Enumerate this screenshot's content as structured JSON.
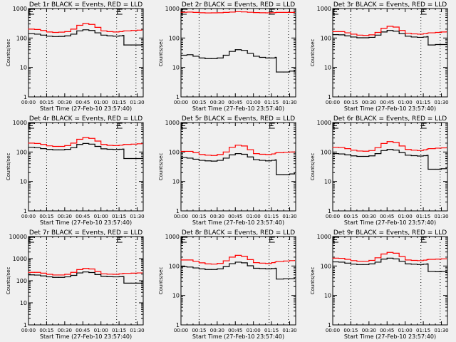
{
  "figure": {
    "background": "#f0f0f0",
    "series_colors": {
      "events": "#000000",
      "lld": "#ff0000"
    },
    "xlabel": "Start Time (27-Feb-10 23:57:40)",
    "ylabel": "Counts/sec",
    "x_tick_labels": [
      "00:00",
      "00:15",
      "00:30",
      "00:45",
      "01:00",
      "01:15",
      "01:30"
    ],
    "x_tick_minutes": [
      0,
      15,
      30,
      45,
      60,
      75,
      90
    ],
    "x_range_minutes": [
      0,
      95
    ],
    "dotted_markers_minutes": [
      15,
      73,
      89
    ],
    "marker_labels": [
      "E",
      "E"
    ],
    "marker_label_minutes": [
      0,
      73
    ]
  },
  "chart_data": [
    {
      "type": "line",
      "title": "Det 1r BLACK = Events, RED = LLD",
      "xlabel": "Start Time (27-Feb-10 23:57:40)",
      "ylabel": "Counts/sec",
      "yscale": "log",
      "ylim": [
        1,
        1000
      ],
      "y_tick_labels": [
        "1",
        "10",
        "100",
        "1000"
      ],
      "x": [
        0,
        5,
        10,
        15,
        20,
        25,
        30,
        35,
        40,
        45,
        50,
        55,
        60,
        65,
        70,
        75,
        78,
        79,
        85,
        90,
        94
      ],
      "series": [
        {
          "name": "Events",
          "values": [
            140,
            135,
            125,
            115,
            112,
            113,
            118,
            135,
            175,
            190,
            180,
            150,
            125,
            118,
            115,
            118,
            122,
            58,
            58,
            58,
            58
          ]
        },
        {
          "name": "LLD",
          "values": [
            200,
            195,
            180,
            160,
            155,
            158,
            165,
            200,
            270,
            310,
            290,
            230,
            175,
            165,
            160,
            165,
            170,
            175,
            180,
            185,
            190
          ]
        }
      ]
    },
    {
      "type": "line",
      "title": "Det 2r BLACK = Events, RED = LLD",
      "xlabel": "Start Time (27-Feb-10 23:57:40)",
      "ylabel": "Counts/sec",
      "yscale": "log",
      "ylim": [
        1,
        1000
      ],
      "y_tick_labels": [
        "1",
        "10",
        "100",
        "1000"
      ],
      "x": [
        0,
        5,
        10,
        15,
        20,
        25,
        30,
        35,
        40,
        45,
        50,
        55,
        60,
        65,
        70,
        75,
        78,
        79,
        85,
        90,
        94
      ],
      "series": [
        {
          "name": "Events",
          "values": [
            26,
            27,
            24,
            21,
            20,
            20,
            21,
            26,
            35,
            40,
            38,
            30,
            24,
            22,
            21,
            21,
            22,
            7,
            7,
            7.5,
            8
          ]
        },
        {
          "name": "LLD",
          "values": [
            750,
            760,
            740,
            720,
            710,
            715,
            720,
            740,
            760,
            780,
            770,
            750,
            730,
            720,
            715,
            720,
            730,
            740,
            740,
            740,
            750
          ]
        }
      ]
    },
    {
      "type": "line",
      "title": "Det 3r BLACK = Events, RED = LLD",
      "xlabel": "Start Time (27-Feb-10 23:57:40)",
      "ylabel": "Counts/sec",
      "yscale": "log",
      "ylim": [
        1,
        1000
      ],
      "y_tick_labels": [
        "1",
        "10",
        "100",
        "1000"
      ],
      "x": [
        0,
        5,
        10,
        15,
        20,
        25,
        30,
        35,
        40,
        45,
        50,
        55,
        60,
        65,
        70,
        75,
        78,
        79,
        85,
        90,
        94
      ],
      "series": [
        {
          "name": "Events",
          "values": [
            130,
            128,
            118,
            108,
            102,
            102,
            105,
            125,
            160,
            180,
            170,
            140,
            115,
            108,
            105,
            108,
            112,
            58,
            60,
            60,
            62
          ]
        },
        {
          "name": "LLD",
          "values": [
            165,
            165,
            150,
            135,
            125,
            122,
            128,
            155,
            215,
            250,
            235,
            180,
            145,
            138,
            135,
            140,
            145,
            150,
            155,
            160,
            165
          ]
        }
      ]
    },
    {
      "type": "line",
      "title": "Det 4r BLACK = Events, RED = LLD",
      "xlabel": "Start Time (27-Feb-10 23:57:40)",
      "ylabel": "Counts/sec",
      "yscale": "log",
      "ylim": [
        1,
        1000
      ],
      "y_tick_labels": [
        "1",
        "10",
        "100",
        "1000"
      ],
      "x": [
        0,
        5,
        10,
        15,
        20,
        25,
        30,
        35,
        40,
        45,
        50,
        55,
        60,
        65,
        70,
        75,
        78,
        79,
        85,
        90,
        94
      ],
      "series": [
        {
          "name": "Events",
          "values": [
            145,
            140,
            130,
            122,
            118,
            118,
            123,
            140,
            180,
            195,
            185,
            155,
            128,
            124,
            122,
            124,
            126,
            60,
            60,
            60,
            62
          ]
        },
        {
          "name": "LLD",
          "values": [
            200,
            195,
            180,
            162,
            155,
            155,
            165,
            200,
            270,
            310,
            290,
            235,
            180,
            168,
            165,
            170,
            175,
            180,
            185,
            190,
            195
          ]
        }
      ]
    },
    {
      "type": "line",
      "title": "Det 5r BLACK = Events, RED = LLD",
      "xlabel": "Start Time (27-Feb-10 23:57:40)",
      "ylabel": "Counts/sec",
      "yscale": "log",
      "ylim": [
        1,
        1000
      ],
      "y_tick_labels": [
        "1",
        "10",
        "100",
        "1000"
      ],
      "x": [
        0,
        5,
        10,
        15,
        20,
        25,
        30,
        35,
        40,
        45,
        50,
        55,
        60,
        65,
        70,
        75,
        78,
        79,
        85,
        90,
        94
      ],
      "series": [
        {
          "name": "Events",
          "values": [
            65,
            62,
            57,
            52,
            50,
            49,
            52,
            62,
            80,
            88,
            84,
            68,
            55,
            52,
            50,
            52,
            54,
            17,
            17,
            18,
            19
          ]
        },
        {
          "name": "LLD",
          "values": [
            105,
            105,
            95,
            82,
            78,
            76,
            82,
            100,
            145,
            170,
            160,
            120,
            88,
            84,
            82,
            86,
            92,
            95,
            98,
            100,
            102
          ]
        }
      ]
    },
    {
      "type": "line",
      "title": "Det 6r BLACK = Events, RED = LLD",
      "xlabel": "Start Time (27-Feb-10 23:57:40)",
      "ylabel": "Counts/sec",
      "yscale": "log",
      "ylim": [
        1,
        1000
      ],
      "y_tick_labels": [
        "1",
        "10",
        "100",
        "1000"
      ],
      "x": [
        0,
        5,
        10,
        15,
        20,
        25,
        30,
        35,
        40,
        45,
        50,
        55,
        60,
        65,
        70,
        75,
        78,
        79,
        85,
        90,
        94
      ],
      "series": [
        {
          "name": "Events",
          "values": [
            88,
            86,
            80,
            74,
            71,
            71,
            74,
            88,
            112,
            122,
            116,
            95,
            78,
            75,
            73,
            75,
            77,
            26,
            26,
            27,
            28
          ]
        },
        {
          "name": "LLD",
          "values": [
            145,
            142,
            130,
            115,
            108,
            106,
            112,
            140,
            195,
            225,
            210,
            160,
            122,
            115,
            112,
            118,
            125,
            130,
            135,
            138,
            142
          ]
        }
      ]
    },
    {
      "type": "line",
      "title": "Det 7r BLACK = Events, RED = LLD",
      "xlabel": "Start Time (27-Feb-10 23:57:40)",
      "ylabel": "Counts/sec",
      "yscale": "log",
      "ylim": [
        1,
        10000
      ],
      "y_tick_labels": [
        "1",
        "10",
        "100",
        "1000",
        "10000"
      ],
      "x": [
        0,
        5,
        10,
        15,
        20,
        25,
        30,
        35,
        40,
        45,
        50,
        55,
        60,
        65,
        70,
        75,
        78,
        79,
        85,
        90,
        94
      ],
      "series": [
        {
          "name": "Events",
          "values": [
            185,
            180,
            165,
            150,
            142,
            142,
            150,
            175,
            225,
            250,
            235,
            190,
            158,
            152,
            150,
            152,
            155,
            78,
            78,
            78,
            80
          ]
        },
        {
          "name": "LLD",
          "values": [
            240,
            240,
            220,
            195,
            182,
            182,
            195,
            240,
            320,
            360,
            340,
            260,
            205,
            198,
            195,
            205,
            212,
            215,
            220,
            225,
            228
          ]
        }
      ]
    },
    {
      "type": "line",
      "title": "Det 8r BLACK = Events, RED = LLD",
      "xlabel": "Start Time (27-Feb-10 23:57:40)",
      "ylabel": "Counts/sec",
      "yscale": "log",
      "ylim": [
        1,
        1000
      ],
      "y_tick_labels": [
        "1",
        "10",
        "100",
        "1000"
      ],
      "x": [
        0,
        5,
        10,
        15,
        20,
        25,
        30,
        35,
        40,
        45,
        50,
        55,
        60,
        65,
        70,
        75,
        78,
        79,
        85,
        90,
        94
      ],
      "series": [
        {
          "name": "Events",
          "values": [
            95,
            92,
            86,
            80,
            76,
            76,
            80,
            95,
            120,
            135,
            128,
            102,
            84,
            82,
            80,
            82,
            84,
            36,
            37,
            37,
            38
          ]
        },
        {
          "name": "LLD",
          "values": [
            160,
            160,
            145,
            128,
            118,
            116,
            122,
            150,
            200,
            230,
            215,
            165,
            130,
            125,
            122,
            130,
            138,
            142,
            148,
            152,
            155
          ]
        }
      ]
    },
    {
      "type": "line",
      "title": "Det 9r BLACK = Events, RED = LLD",
      "xlabel": "Start Time (27-Feb-10 23:57:40)",
      "ylabel": "Counts/sec",
      "yscale": "log",
      "ylim": [
        1,
        1000
      ],
      "y_tick_labels": [
        "1",
        "10",
        "100",
        "1000"
      ],
      "x": [
        0,
        5,
        10,
        15,
        20,
        25,
        30,
        35,
        40,
        45,
        50,
        55,
        60,
        65,
        70,
        75,
        78,
        79,
        85,
        90,
        94
      ],
      "series": [
        {
          "name": "Events",
          "values": [
            138,
            135,
            125,
            116,
            112,
            112,
            118,
            135,
            172,
            185,
            175,
            145,
            118,
            115,
            112,
            115,
            118,
            65,
            64,
            65,
            66
          ]
        },
        {
          "name": "LLD",
          "values": [
            185,
            182,
            168,
            152,
            145,
            145,
            155,
            190,
            255,
            290,
            272,
            210,
            160,
            155,
            152,
            158,
            165,
            168,
            172,
            175,
            178
          ]
        }
      ]
    }
  ]
}
